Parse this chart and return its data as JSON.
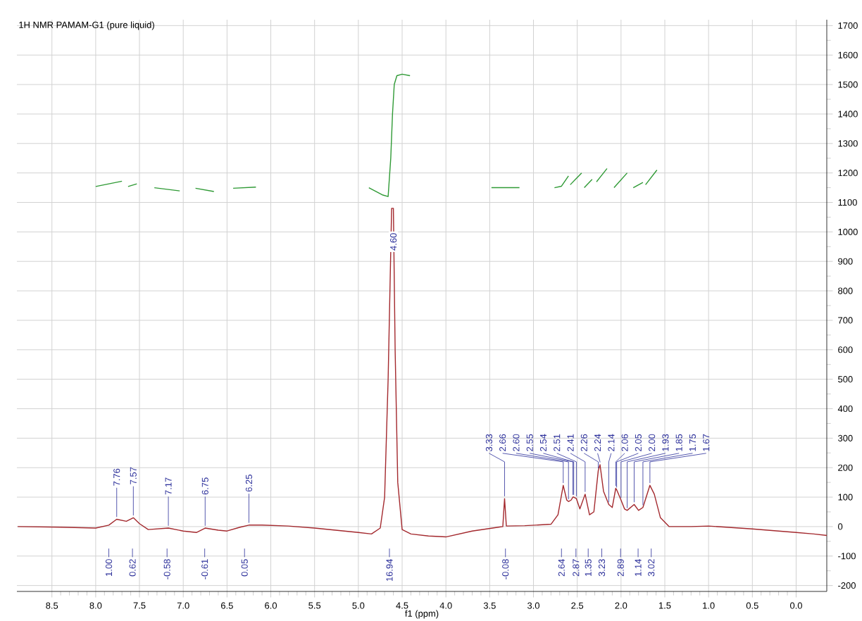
{
  "chart_data": {
    "type": "line",
    "title": "1H NMR  PAMAM-G1 (pure liquid)",
    "xlabel": "f1 (ppm)",
    "xlim": [
      8.9,
      -0.35
    ],
    "ylim": [
      -220,
      1720
    ],
    "xticks": [
      {
        "value": 8.5,
        "label": "8.5"
      },
      {
        "value": 8,
        "label": "8.0"
      },
      {
        "value": 7.5,
        "label": "7.5"
      },
      {
        "value": 7,
        "label": "7.0"
      },
      {
        "value": 6.5,
        "label": "6.5"
      },
      {
        "value": 6,
        "label": "6.0"
      },
      {
        "value": 5.5,
        "label": "5.5"
      },
      {
        "value": 5,
        "label": "5.0"
      },
      {
        "value": 4.5,
        "label": "4.5"
      },
      {
        "value": 4,
        "label": "4.0"
      },
      {
        "value": 3.5,
        "label": "3.5"
      },
      {
        "value": 3,
        "label": "3.0"
      },
      {
        "value": 2.5,
        "label": "2.5"
      },
      {
        "value": 2,
        "label": "2.0"
      },
      {
        "value": 1.5,
        "label": "1.5"
      },
      {
        "value": 1,
        "label": "1.0"
      },
      {
        "value": 0.5,
        "label": "0.5"
      },
      {
        "value": 0,
        "label": "0.0"
      }
    ],
    "yticks": [
      -200,
      -100,
      0,
      100,
      200,
      300,
      400,
      500,
      600,
      700,
      800,
      900,
      1000,
      1100,
      1200,
      1300,
      1400,
      1500,
      1600,
      1700
    ],
    "grid": true,
    "series": [
      {
        "color": "#a3282d",
        "x": [
          8.89,
          8.4,
          8.0,
          7.85,
          7.76,
          7.65,
          7.57,
          7.5,
          7.4,
          7.17,
          7.0,
          6.85,
          6.75,
          6.6,
          6.5,
          6.35,
          6.25,
          6.1,
          5.8,
          5.5,
          5.0,
          4.85,
          4.75,
          4.7,
          4.66,
          4.62,
          4.6,
          4.58,
          4.55,
          4.5,
          4.4,
          4.2,
          4.0,
          3.7,
          3.4,
          3.35,
          3.33,
          3.31,
          3.1,
          2.8,
          2.72,
          2.66,
          2.62,
          2.6,
          2.57,
          2.55,
          2.54,
          2.51,
          2.47,
          2.41,
          2.36,
          2.31,
          2.26,
          2.24,
          2.2,
          2.14,
          2.1,
          2.06,
          2.05,
          2.0,
          1.96,
          1.93,
          1.85,
          1.8,
          1.75,
          1.67,
          1.62,
          1.55,
          1.45,
          1.2,
          1.0,
          0.5,
          0.0,
          -0.2,
          -0.35
        ],
        "values": [
          0,
          -2,
          -5,
          5,
          25,
          18,
          30,
          10,
          -10,
          -5,
          -15,
          -20,
          -5,
          -12,
          -15,
          -2,
          5,
          5,
          2,
          -5,
          -20,
          -25,
          -5,
          100,
          500,
          1080,
          1080,
          600,
          150,
          -10,
          -25,
          -32,
          -35,
          -15,
          -2,
          0,
          95,
          2,
          3,
          8,
          40,
          140,
          90,
          85,
          90,
          100,
          100,
          95,
          60,
          110,
          40,
          50,
          190,
          210,
          120,
          75,
          65,
          130,
          125,
          90,
          60,
          55,
          75,
          55,
          65,
          140,
          110,
          30,
          0,
          0,
          2,
          -8,
          -20,
          -25,
          -30
        ]
      },
      {
        "color": "#2f9a35",
        "x": [
          8.0,
          7.7,
          7.66,
          7.63,
          7.53,
          7.43,
          7.33,
          7.04,
          6.95,
          6.86,
          6.65,
          6.54,
          6.43,
          6.17,
          5.5,
          4.88,
          4.72,
          4.66,
          4.63,
          4.61,
          4.59,
          4.56,
          4.5,
          4.41,
          3.95,
          3.48,
          3.16,
          2.96,
          2.76,
          2.68,
          2.6,
          2.59,
          2.58,
          2.45,
          2.44,
          2.42,
          2.33,
          2.3,
          2.28,
          2.16,
          2.12,
          2.08,
          1.93,
          1.9,
          1.86,
          1.75,
          1.74,
          1.72,
          1.59
        ],
        "values": [
          1154,
          1172,
          null,
          1154,
          1163,
          null,
          1150,
          1139,
          null,
          1148,
          1137,
          null,
          1148,
          1152,
          null,
          1150,
          1125,
          1120,
          1250,
          1400,
          1500,
          1530,
          1535,
          1530,
          null,
          1150,
          1150,
          null,
          1150,
          1155,
          1190,
          null,
          1160,
          1200,
          null,
          1150,
          1178,
          null,
          1170,
          1215,
          null,
          1150,
          1200,
          null,
          1150,
          1168,
          null,
          1160,
          1210
        ]
      }
    ],
    "annotations": [
      {
        "text": "7.76",
        "x": 7.76,
        "y": 25
      },
      {
        "text": "7.57",
        "x": 7.57,
        "y": 30
      },
      {
        "text": "7.17",
        "x": 7.17,
        "y": -5
      },
      {
        "text": "6.75",
        "x": 6.75,
        "y": -5
      },
      {
        "text": "6.25",
        "x": 6.25,
        "y": 5
      },
      {
        "text": "4.60",
        "x": 4.6,
        "y": 1080
      },
      {
        "text": "3.33",
        "x": 3.33,
        "y": 95
      },
      {
        "text": "2.66",
        "x": 2.66,
        "y": 140
      },
      {
        "text": "2.60",
        "x": 2.6,
        "y": 85
      },
      {
        "text": "2.55",
        "x": 2.55,
        "y": 100
      },
      {
        "text": "2.54",
        "x": 2.54,
        "y": 100
      },
      {
        "text": "2.51",
        "x": 2.51,
        "y": 95
      },
      {
        "text": "2.41",
        "x": 2.41,
        "y": 110
      },
      {
        "text": "2.26",
        "x": 2.26,
        "y": 190
      },
      {
        "text": "2.24",
        "x": 2.24,
        "y": 210
      },
      {
        "text": "2.14",
        "x": 2.14,
        "y": 75
      },
      {
        "text": "2.06",
        "x": 2.06,
        "y": 130
      },
      {
        "text": "2.05",
        "x": 2.05,
        "y": 125
      },
      {
        "text": "2.00",
        "x": 2.0,
        "y": 90
      },
      {
        "text": "1.93",
        "x": 1.93,
        "y": 55
      },
      {
        "text": "1.85",
        "x": 1.85,
        "y": 75
      },
      {
        "text": "1.75",
        "x": 1.75,
        "y": 65
      },
      {
        "text": "1.67",
        "x": 1.67,
        "y": 140
      },
      "1.00",
      "0.62",
      "-0.58",
      "-0.61",
      "0.05",
      "16.94",
      "-0.08",
      "2.64",
      "2.87",
      "1.35",
      "3.23",
      "2.89",
      "1.14",
      "3.02"
    ]
  }
}
